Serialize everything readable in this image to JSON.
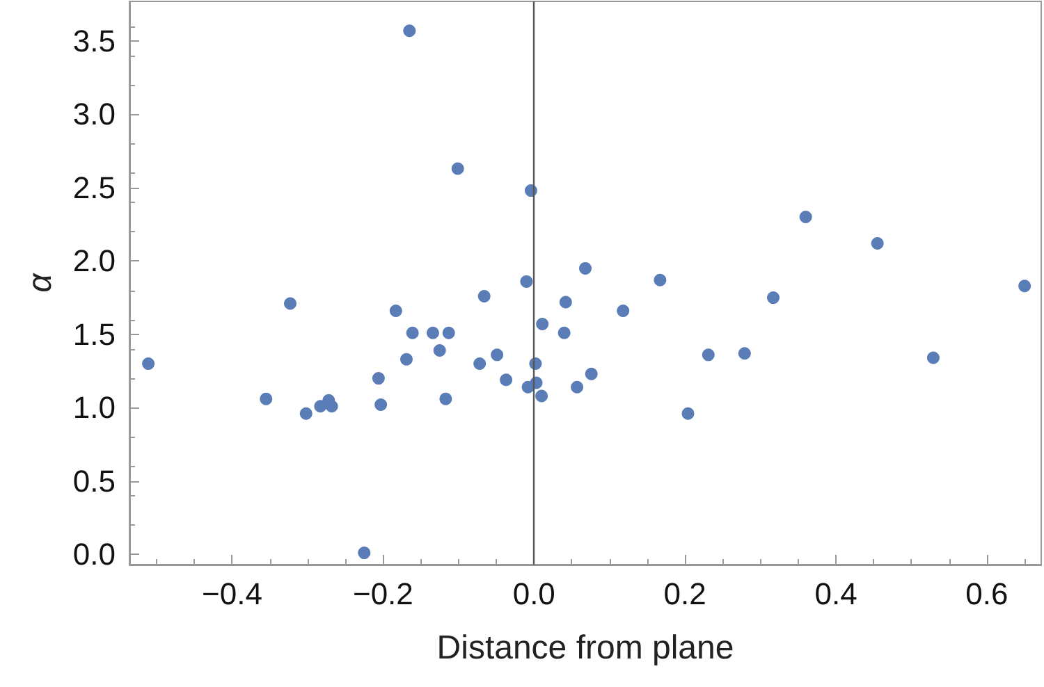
{
  "chart_data": {
    "type": "scatter",
    "xlabel": "Distance from plane",
    "ylabel": "α",
    "xlim": [
      -0.536,
      0.672
    ],
    "ylim": [
      -0.07,
      3.77
    ],
    "xticks": [
      {
        "value": -0.4,
        "label": "−0.4"
      },
      {
        "value": -0.2,
        "label": "−0.2"
      },
      {
        "value": 0,
        "label": "0.0"
      },
      {
        "value": 0.2,
        "label": "0.2"
      },
      {
        "value": 0.4,
        "label": "0.4"
      },
      {
        "value": 0.6,
        "label": "0.6"
      }
    ],
    "yticks": [
      {
        "value": 0,
        "label": "0.0"
      },
      {
        "value": 0.5,
        "label": "0.5"
      },
      {
        "value": 1,
        "label": "1.0"
      },
      {
        "value": 1.5,
        "label": "1.5"
      },
      {
        "value": 2,
        "label": "2.0"
      },
      {
        "value": 2.5,
        "label": "2.5"
      },
      {
        "value": 3,
        "label": "3.0"
      },
      {
        "value": 3.5,
        "label": "3.5"
      }
    ],
    "grid": false,
    "marker": "circle",
    "ref_lines": [
      {
        "axis": "x",
        "value": 0,
        "color": "#555555",
        "line_style": "solid"
      }
    ],
    "series": [
      {
        "color": "#5a7db8",
        "x": [
          -0.511,
          -0.355,
          -0.323,
          -0.302,
          -0.283,
          -0.272,
          -0.268,
          -0.165,
          -0.101,
          -0.004,
          0.068,
          -0.01,
          0.167,
          -0.066,
          0.042,
          -0.183,
          0.118,
          0.011,
          -0.161,
          -0.134,
          -0.113,
          0.04,
          -0.125,
          -0.169,
          -0.049,
          -0.072,
          0.002,
          -0.206,
          -0.037,
          0.076,
          0.003,
          -0.008,
          0.057,
          0.01,
          -0.203,
          -0.117,
          -0.225,
          0.204,
          0.231,
          0.279,
          0.317,
          0.36,
          0.455,
          0.529,
          0.65
        ],
        "values": [
          1.3,
          1.06,
          1.71,
          0.96,
          1.01,
          1.05,
          1.01,
          3.57,
          2.63,
          2.48,
          1.95,
          1.86,
          1.87,
          1.76,
          1.72,
          1.66,
          1.66,
          1.57,
          1.51,
          1.51,
          1.51,
          1.51,
          1.39,
          1.33,
          1.36,
          1.3,
          1.3,
          1.2,
          1.19,
          1.23,
          1.17,
          1.14,
          1.14,
          1.08,
          1.02,
          1.06,
          0.01,
          0.96,
          1.36,
          1.37,
          1.75,
          2.3,
          2.12,
          1.34,
          1.83
        ]
      }
    ]
  }
}
